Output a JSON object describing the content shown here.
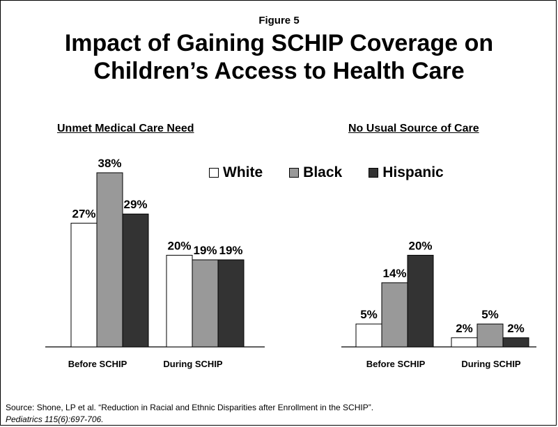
{
  "figure_label": "Figure 5",
  "title_line1": "Impact of Gaining SCHIP Coverage on",
  "title_line2": "Children’s Access to Health Care",
  "legend": [
    {
      "label": "White",
      "color": "#ffffff"
    },
    {
      "label": "Black",
      "color": "#999999"
    },
    {
      "label": "Hispanic",
      "color": "#333333"
    }
  ],
  "source_line1": "Source:  Shone, LP et al.  “Reduction in Racial and Ethnic Disparities after Enrollment in the SCHIP”.",
  "source_line2": "Pediatrics 115(6):697-706.",
  "chart_data": [
    {
      "type": "bar",
      "title": "Unmet Medical Care Need",
      "categories": [
        "Before SCHIP",
        "During SCHIP"
      ],
      "series": [
        {
          "name": "White",
          "values": [
            27,
            20
          ]
        },
        {
          "name": "Black",
          "values": [
            38,
            19
          ]
        },
        {
          "name": "Hispanic",
          "values": [
            29,
            19
          ]
        }
      ],
      "value_labels": [
        [
          "27%",
          "38%",
          "29%"
        ],
        [
          "20%",
          "19%",
          "19%"
        ]
      ],
      "ylim": [
        0,
        38
      ],
      "grid": false,
      "legend_position": "top"
    },
    {
      "type": "bar",
      "title": "No Usual Source of Care",
      "categories": [
        "Before SCHIP",
        "During SCHIP"
      ],
      "series": [
        {
          "name": "White",
          "values": [
            5,
            2
          ]
        },
        {
          "name": "Black",
          "values": [
            14,
            5
          ]
        },
        {
          "name": "Hispanic",
          "values": [
            20,
            2
          ]
        }
      ],
      "value_labels": [
        [
          "5%",
          "14%",
          "20%"
        ],
        [
          "2%",
          "5%",
          "2%"
        ]
      ],
      "ylim": [
        0,
        38
      ],
      "grid": false,
      "legend_position": "top"
    }
  ]
}
